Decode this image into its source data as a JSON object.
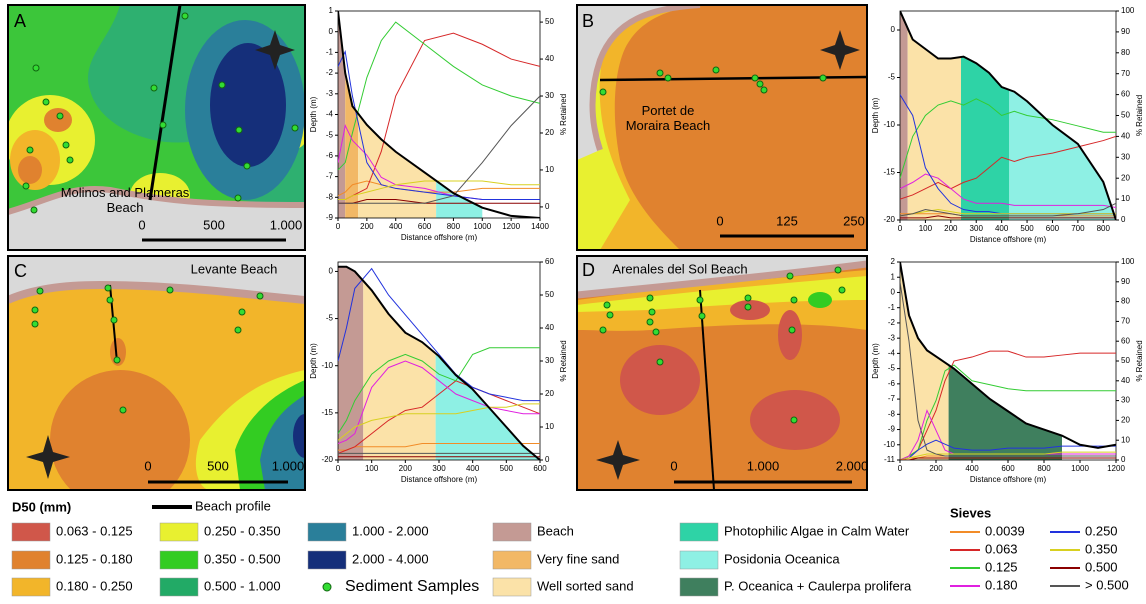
{
  "maps": [
    {
      "letter": "A",
      "name": "Molinos and Plameras\nBeach",
      "scale": [
        "0",
        "500",
        "1.000"
      ]
    },
    {
      "letter": "B",
      "name": "Portet de\nMoraira Beach",
      "scale": [
        "0",
        "125",
        "250"
      ]
    },
    {
      "letter": "C",
      "name": "Levante Beach",
      "scale": [
        "0",
        "500",
        "1.000"
      ]
    },
    {
      "letter": "D",
      "name": "Arenales del Sol Beach",
      "scale": [
        "0",
        "1.000",
        "2.000"
      ]
    }
  ],
  "chart_data": [
    {
      "type": "line",
      "xlabel": "Distance offshore (m)",
      "ylabel": "Depth (m)",
      "y2label": "% Retained",
      "xlim": [
        0,
        1400
      ],
      "xticks": [
        0,
        200,
        400,
        600,
        800,
        1000,
        1200,
        1400
      ],
      "ylim": [
        -9,
        1
      ],
      "yticks": [
        -9,
        -8,
        -7,
        -6,
        -5,
        -4,
        -3,
        -2,
        -1,
        0,
        1
      ],
      "y2lim": [
        -3,
        53
      ],
      "y2ticks": [
        0,
        10,
        20,
        30,
        40,
        50
      ],
      "zones": [
        {
          "color": "#c49a94",
          "x": [
            0,
            50
          ]
        },
        {
          "color": "#f2b866",
          "x": [
            50,
            140
          ]
        },
        {
          "color": "#fbe2a8",
          "x": [
            140,
            680
          ]
        },
        {
          "color": "#8ef0e4",
          "x": [
            680,
            1000
          ]
        }
      ],
      "x": [
        0,
        50,
        100,
        200,
        300,
        400,
        600,
        800,
        1000,
        1200,
        1400
      ],
      "series": [
        {
          "color": "#f28c28",
          "axis": "y2",
          "values": [
            3,
            4,
            6,
            7,
            6,
            5,
            4,
            4,
            5,
            5,
            5
          ]
        },
        {
          "color": "#d62728",
          "axis": "y2",
          "values": [
            2,
            2,
            3,
            5,
            15,
            30,
            45,
            47,
            44,
            40,
            38
          ]
        },
        {
          "color": "#33cc33",
          "axis": "y2",
          "values": [
            10,
            12,
            20,
            35,
            45,
            50,
            44,
            38,
            33,
            30,
            28
          ]
        },
        {
          "color": "#e020e0",
          "axis": "y2",
          "values": [
            12,
            22,
            18,
            14,
            8,
            6,
            5,
            3,
            2,
            2,
            2
          ]
        },
        {
          "color": "#2233dd",
          "axis": "y2",
          "values": [
            38,
            42,
            30,
            12,
            6,
            5,
            4,
            3,
            2,
            2,
            2
          ]
        },
        {
          "color": "#d8d020",
          "axis": "y2",
          "values": [
            2,
            2,
            3,
            4,
            5,
            6,
            7,
            7,
            7,
            6,
            6
          ]
        },
        {
          "color": "#8b0000",
          "axis": "y2",
          "values": [
            1,
            1,
            1,
            2,
            2,
            2,
            1,
            1,
            1,
            1,
            1
          ]
        },
        {
          "color": "#555555",
          "axis": "y2",
          "values": [
            1,
            1,
            1,
            1,
            1,
            1,
            1,
            3,
            12,
            22,
            30
          ]
        },
        {
          "color": "#000000",
          "axis": "y",
          "values": [
            1,
            -2,
            -3.6,
            -4.5,
            -5.2,
            -5.8,
            -6.8,
            -7.8,
            -8.5,
            -8.9,
            -9
          ]
        }
      ]
    },
    {
      "type": "line",
      "xlabel": "Distance offshore (m)",
      "ylabel": "Depth (m)",
      "y2label": "% Retained",
      "xlim": [
        0,
        850
      ],
      "xticks": [
        0,
        100,
        200,
        300,
        400,
        500,
        600,
        700,
        800
      ],
      "ylim": [
        -20,
        2
      ],
      "yticks": [
        -20,
        -15,
        -10,
        -5,
        0
      ],
      "y2lim": [
        0,
        100
      ],
      "y2ticks": [
        0,
        10,
        20,
        30,
        40,
        50,
        60,
        70,
        80,
        90,
        100
      ],
      "zones": [
        {
          "color": "#c49a94",
          "x": [
            0,
            30
          ]
        },
        {
          "color": "#fbe2a8",
          "x": [
            30,
            240
          ]
        },
        {
          "color": "#2ed3a6",
          "x": [
            240,
            430
          ]
        },
        {
          "color": "#8ef0e4",
          "x": [
            430,
            850
          ]
        }
      ],
      "x": [
        0,
        50,
        100,
        150,
        200,
        250,
        300,
        350,
        400,
        450,
        500,
        600,
        700,
        800,
        850
      ],
      "series": [
        {
          "color": "#f28c28",
          "axis": "y2",
          "values": [
            3,
            3,
            3,
            3,
            3,
            2,
            2,
            2,
            2,
            2,
            2,
            2,
            2,
            2,
            2
          ]
        },
        {
          "color": "#d62728",
          "axis": "y2",
          "values": [
            10,
            12,
            15,
            18,
            15,
            18,
            20,
            25,
            30,
            28,
            30,
            32,
            35,
            38,
            40
          ]
        },
        {
          "color": "#33cc33",
          "axis": "y2",
          "values": [
            20,
            40,
            50,
            55,
            57,
            55,
            58,
            55,
            50,
            52,
            50,
            48,
            45,
            42,
            42
          ]
        },
        {
          "color": "#e020e0",
          "axis": "y2",
          "values": [
            15,
            18,
            22,
            20,
            15,
            10,
            8,
            8,
            8,
            7,
            7,
            7,
            7,
            7,
            6
          ]
        },
        {
          "color": "#2233dd",
          "axis": "y2",
          "values": [
            60,
            50,
            25,
            15,
            8,
            5,
            4,
            4,
            3,
            3,
            3,
            3,
            3,
            3,
            3
          ]
        },
        {
          "color": "#d8d020",
          "axis": "y2",
          "values": [
            2,
            3,
            4,
            5,
            4,
            3,
            3,
            3,
            3,
            3,
            3,
            3,
            3,
            3,
            3
          ]
        },
        {
          "color": "#8b0000",
          "axis": "y2",
          "values": [
            1,
            1,
            1,
            2,
            1,
            1,
            1,
            1,
            1,
            1,
            1,
            1,
            1,
            1,
            1
          ]
        },
        {
          "color": "#555555",
          "axis": "y2",
          "values": [
            2,
            3,
            5,
            4,
            3,
            2,
            2,
            2,
            2,
            2,
            2,
            2,
            3,
            5,
            8
          ]
        },
        {
          "color": "#000000",
          "axis": "y",
          "values": [
            2,
            -1,
            -2,
            -3,
            -3,
            -2.8,
            -3.5,
            -4.5,
            -6,
            -6.5,
            -7.5,
            -10,
            -12,
            -16,
            -20
          ]
        }
      ]
    },
    {
      "type": "line",
      "xlabel": "Distance offshore (m)",
      "ylabel": "Depth (m)",
      "y2label": "% Retained",
      "xlim": [
        0,
        600
      ],
      "xticks": [
        0,
        100,
        200,
        300,
        400,
        500,
        600
      ],
      "ylim": [
        -20,
        1
      ],
      "yticks": [
        -20,
        -15,
        -10,
        -5,
        0
      ],
      "y2lim": [
        0,
        60
      ],
      "y2ticks": [
        0,
        10,
        20,
        30,
        40,
        50,
        60
      ],
      "zones": [
        {
          "color": "#c49a94",
          "x": [
            0,
            75
          ]
        },
        {
          "color": "#fbe2a8",
          "x": [
            75,
            290
          ]
        },
        {
          "color": "#8ef0e4",
          "x": [
            290,
            600
          ]
        }
      ],
      "x": [
        0,
        25,
        50,
        100,
        150,
        200,
        250,
        300,
        350,
        400,
        450,
        500,
        550,
        600
      ],
      "series": [
        {
          "color": "#f28c28",
          "axis": "y2",
          "values": [
            3,
            3,
            4,
            4,
            4,
            4,
            5,
            5,
            5,
            5,
            5,
            5,
            5,
            5
          ]
        },
        {
          "color": "#d62728",
          "axis": "y2",
          "values": [
            2,
            3,
            4,
            8,
            12,
            15,
            16,
            20,
            24,
            22,
            20,
            18,
            16,
            14
          ]
        },
        {
          "color": "#33cc33",
          "axis": "y2",
          "values": [
            8,
            12,
            18,
            26,
            30,
            32,
            30,
            26,
            24,
            32,
            34,
            34,
            34,
            34
          ]
        },
        {
          "color": "#e020e0",
          "axis": "y2",
          "values": [
            5,
            6,
            8,
            22,
            28,
            30,
            28,
            24,
            20,
            18,
            16,
            15,
            14,
            14
          ]
        },
        {
          "color": "#2233dd",
          "axis": "y2",
          "values": [
            30,
            40,
            52,
            58,
            50,
            44,
            38,
            32,
            26,
            22,
            20,
            19,
            18,
            18
          ]
        },
        {
          "color": "#d8d020",
          "axis": "y2",
          "values": [
            6,
            8,
            10,
            12,
            13,
            14,
            14,
            14,
            14,
            15,
            16,
            16,
            17,
            17
          ]
        },
        {
          "color": "#8b0000",
          "axis": "y2",
          "values": [
            1,
            1,
            1,
            1,
            1,
            1,
            1,
            1,
            1,
            1,
            1,
            1,
            1,
            1
          ]
        },
        {
          "color": "#555555",
          "axis": "y2",
          "values": [
            2,
            2,
            2,
            2,
            2,
            2,
            2,
            2,
            2,
            2,
            2,
            2,
            2,
            2
          ]
        },
        {
          "color": "#000000",
          "axis": "y",
          "values": [
            0.5,
            0.5,
            0,
            -2,
            -4.5,
            -6.5,
            -7.5,
            -9,
            -11,
            -12.5,
            -14.5,
            -16.5,
            -18.5,
            -20
          ]
        }
      ]
    },
    {
      "type": "line",
      "xlabel": "Distance offshore (m)",
      "ylabel": "Depth (m)",
      "y2label": "% Retained",
      "xlim": [
        0,
        1200
      ],
      "xticks": [
        0,
        200,
        400,
        600,
        800,
        1000,
        1200
      ],
      "ylim": [
        -11,
        2
      ],
      "yticks": [
        -11,
        -10,
        -9,
        -8,
        -7,
        -6,
        -5,
        -4,
        -3,
        -2,
        -1,
        0,
        1,
        2
      ],
      "y2lim": [
        0,
        100
      ],
      "y2ticks": [
        0,
        10,
        20,
        30,
        40,
        50,
        60,
        70,
        80,
        90,
        100
      ],
      "zones": [
        {
          "color": "#fbe2a8",
          "x": [
            0,
            270
          ]
        },
        {
          "color": "#3f7f5e",
          "x": [
            270,
            900
          ]
        }
      ],
      "x": [
        0,
        50,
        100,
        150,
        200,
        250,
        300,
        400,
        500,
        600,
        700,
        800,
        900,
        1000,
        1100,
        1200
      ],
      "series": [
        {
          "color": "#f28c28",
          "axis": "y2",
          "values": [
            0,
            1,
            1,
            2,
            2,
            2,
            2,
            2,
            2,
            2,
            2,
            2,
            2,
            2,
            2,
            2
          ]
        },
        {
          "color": "#d62728",
          "axis": "y2",
          "values": [
            0,
            2,
            5,
            15,
            25,
            40,
            50,
            52,
            55,
            55,
            52,
            52,
            53,
            54,
            54,
            54
          ]
        },
        {
          "color": "#33cc33",
          "axis": "y2",
          "values": [
            0,
            2,
            5,
            20,
            30,
            45,
            48,
            40,
            38,
            36,
            35,
            35,
            35,
            35,
            35,
            35
          ]
        },
        {
          "color": "#e020e0",
          "axis": "y2",
          "values": [
            0,
            2,
            10,
            25,
            15,
            5,
            3,
            3,
            3,
            3,
            3,
            3,
            3,
            3,
            3,
            3
          ]
        },
        {
          "color": "#2233dd",
          "axis": "y2",
          "values": [
            0,
            1,
            5,
            8,
            10,
            8,
            6,
            5,
            5,
            6,
            6,
            6,
            7,
            7,
            7,
            7
          ]
        },
        {
          "color": "#d8d020",
          "axis": "y2",
          "values": [
            0,
            1,
            2,
            3,
            3,
            3,
            3,
            3,
            3,
            3,
            3,
            3,
            4,
            4,
            4,
            4
          ]
        },
        {
          "color": "#8b0000",
          "axis": "y2",
          "values": [
            0,
            0,
            1,
            1,
            1,
            1,
            1,
            1,
            1,
            1,
            1,
            1,
            1,
            1,
            1,
            1
          ]
        },
        {
          "color": "#555555",
          "axis": "y2",
          "values": [
            90,
            60,
            20,
            5,
            3,
            2,
            2,
            2,
            2,
            2,
            2,
            2,
            2,
            2,
            2,
            2
          ]
        },
        {
          "color": "#000000",
          "axis": "y",
          "values": [
            2,
            -1.5,
            -3,
            -3.8,
            -4.2,
            -4.6,
            -5,
            -6,
            -7,
            -7.8,
            -8.6,
            -9,
            -9.4,
            -10,
            -10.2,
            -10
          ]
        }
      ]
    }
  ],
  "legend": {
    "d50_title": "D50 (mm)",
    "d50": [
      {
        "label": "0.063 - 0.125",
        "color": "#d0574a"
      },
      {
        "label": "0.125 - 0.180",
        "color": "#e0822f"
      },
      {
        "label": "0.180 - 0.250",
        "color": "#f2b52a"
      },
      {
        "label": "0.250 - 0.350",
        "color": "#e8f030"
      },
      {
        "label": "0.350 - 0.500",
        "color": "#33cc22"
      },
      {
        "label": "0.500 - 1.000",
        "color": "#22aa66"
      },
      {
        "label": "1.000 - 2.000",
        "color": "#2a7f9a"
      },
      {
        "label": "2.000 - 4.000",
        "color": "#152f7a"
      }
    ],
    "beach_profile": "Beach profile",
    "samples": "Sediment Samples",
    "zones": [
      {
        "label": "Beach",
        "color": "#c49a94"
      },
      {
        "label": "Very fine sand",
        "color": "#f2b866"
      },
      {
        "label": "Well sorted sand",
        "color": "#fbe2a8"
      },
      {
        "label": "Photophilic Algae in Calm Water",
        "color": "#2ed3a6"
      },
      {
        "label": "Posidonia Oceanica",
        "color": "#8ef0e4"
      },
      {
        "label": "P. Oceanica + Caulerpa prolifera",
        "color": "#3f7f5e"
      }
    ],
    "sieves_title": "Sieves",
    "sieves": [
      {
        "label": "0.0039",
        "color": "#f28c28"
      },
      {
        "label": "0.063",
        "color": "#d62728"
      },
      {
        "label": "0.125",
        "color": "#33cc33"
      },
      {
        "label": "0.180",
        "color": "#e020e0"
      },
      {
        "label": "0.250",
        "color": "#2233dd"
      },
      {
        "label": "0.350",
        "color": "#d8d020"
      },
      {
        "label": "0.500",
        "color": "#8b0000"
      },
      {
        "label": "> 0.500",
        "color": "#555555"
      }
    ]
  }
}
